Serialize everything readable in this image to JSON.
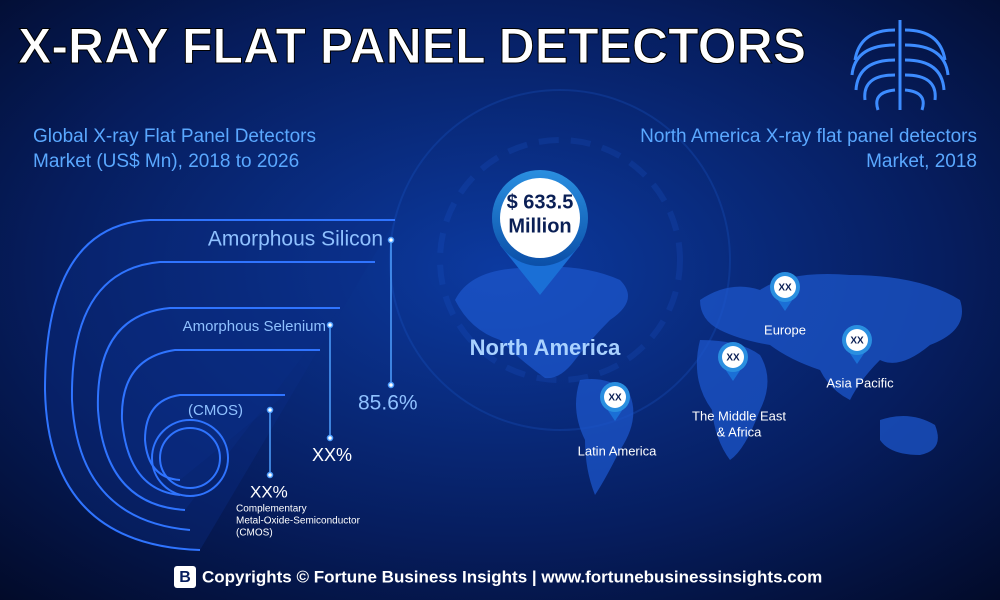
{
  "header": {
    "title": "X-RAY FLAT PANEL DETECTORS"
  },
  "left_panel": {
    "heading_lines": [
      "Global X-ray Flat Panel Detectors",
      "Market (US$ Mn), 2018 to 2026"
    ],
    "segments": [
      {
        "label": "Amorphous Silicon",
        "share": "85.6%"
      },
      {
        "label": "Amorphous Selenium",
        "share": "XX%"
      },
      {
        "label": "(CMOS)",
        "share": "XX%"
      }
    ],
    "note_lines": [
      "Complementary",
      "Metal-Oxide-Semiconductor",
      "(CMOS)"
    ]
  },
  "right_panel": {
    "heading_lines": [
      "North America X-ray flat panel detectors",
      "Market, 2018"
    ],
    "highlight": {
      "value_lines": [
        "$ 633.5",
        "Million"
      ],
      "region": "North America"
    },
    "regions": [
      {
        "label_lines": [
          "Europe"
        ],
        "value": "XX"
      },
      {
        "label_lines": [
          "Asia Pacific"
        ],
        "value": "XX"
      },
      {
        "label_lines": [
          "The Middle East",
          "& Africa"
        ],
        "value": "XX"
      },
      {
        "label_lines": [
          "Latin America"
        ],
        "value": "XX"
      }
    ]
  },
  "footer": {
    "text": "Copyrights © Fortune Business Insights | www.fortunebusinessinsights.com"
  }
}
